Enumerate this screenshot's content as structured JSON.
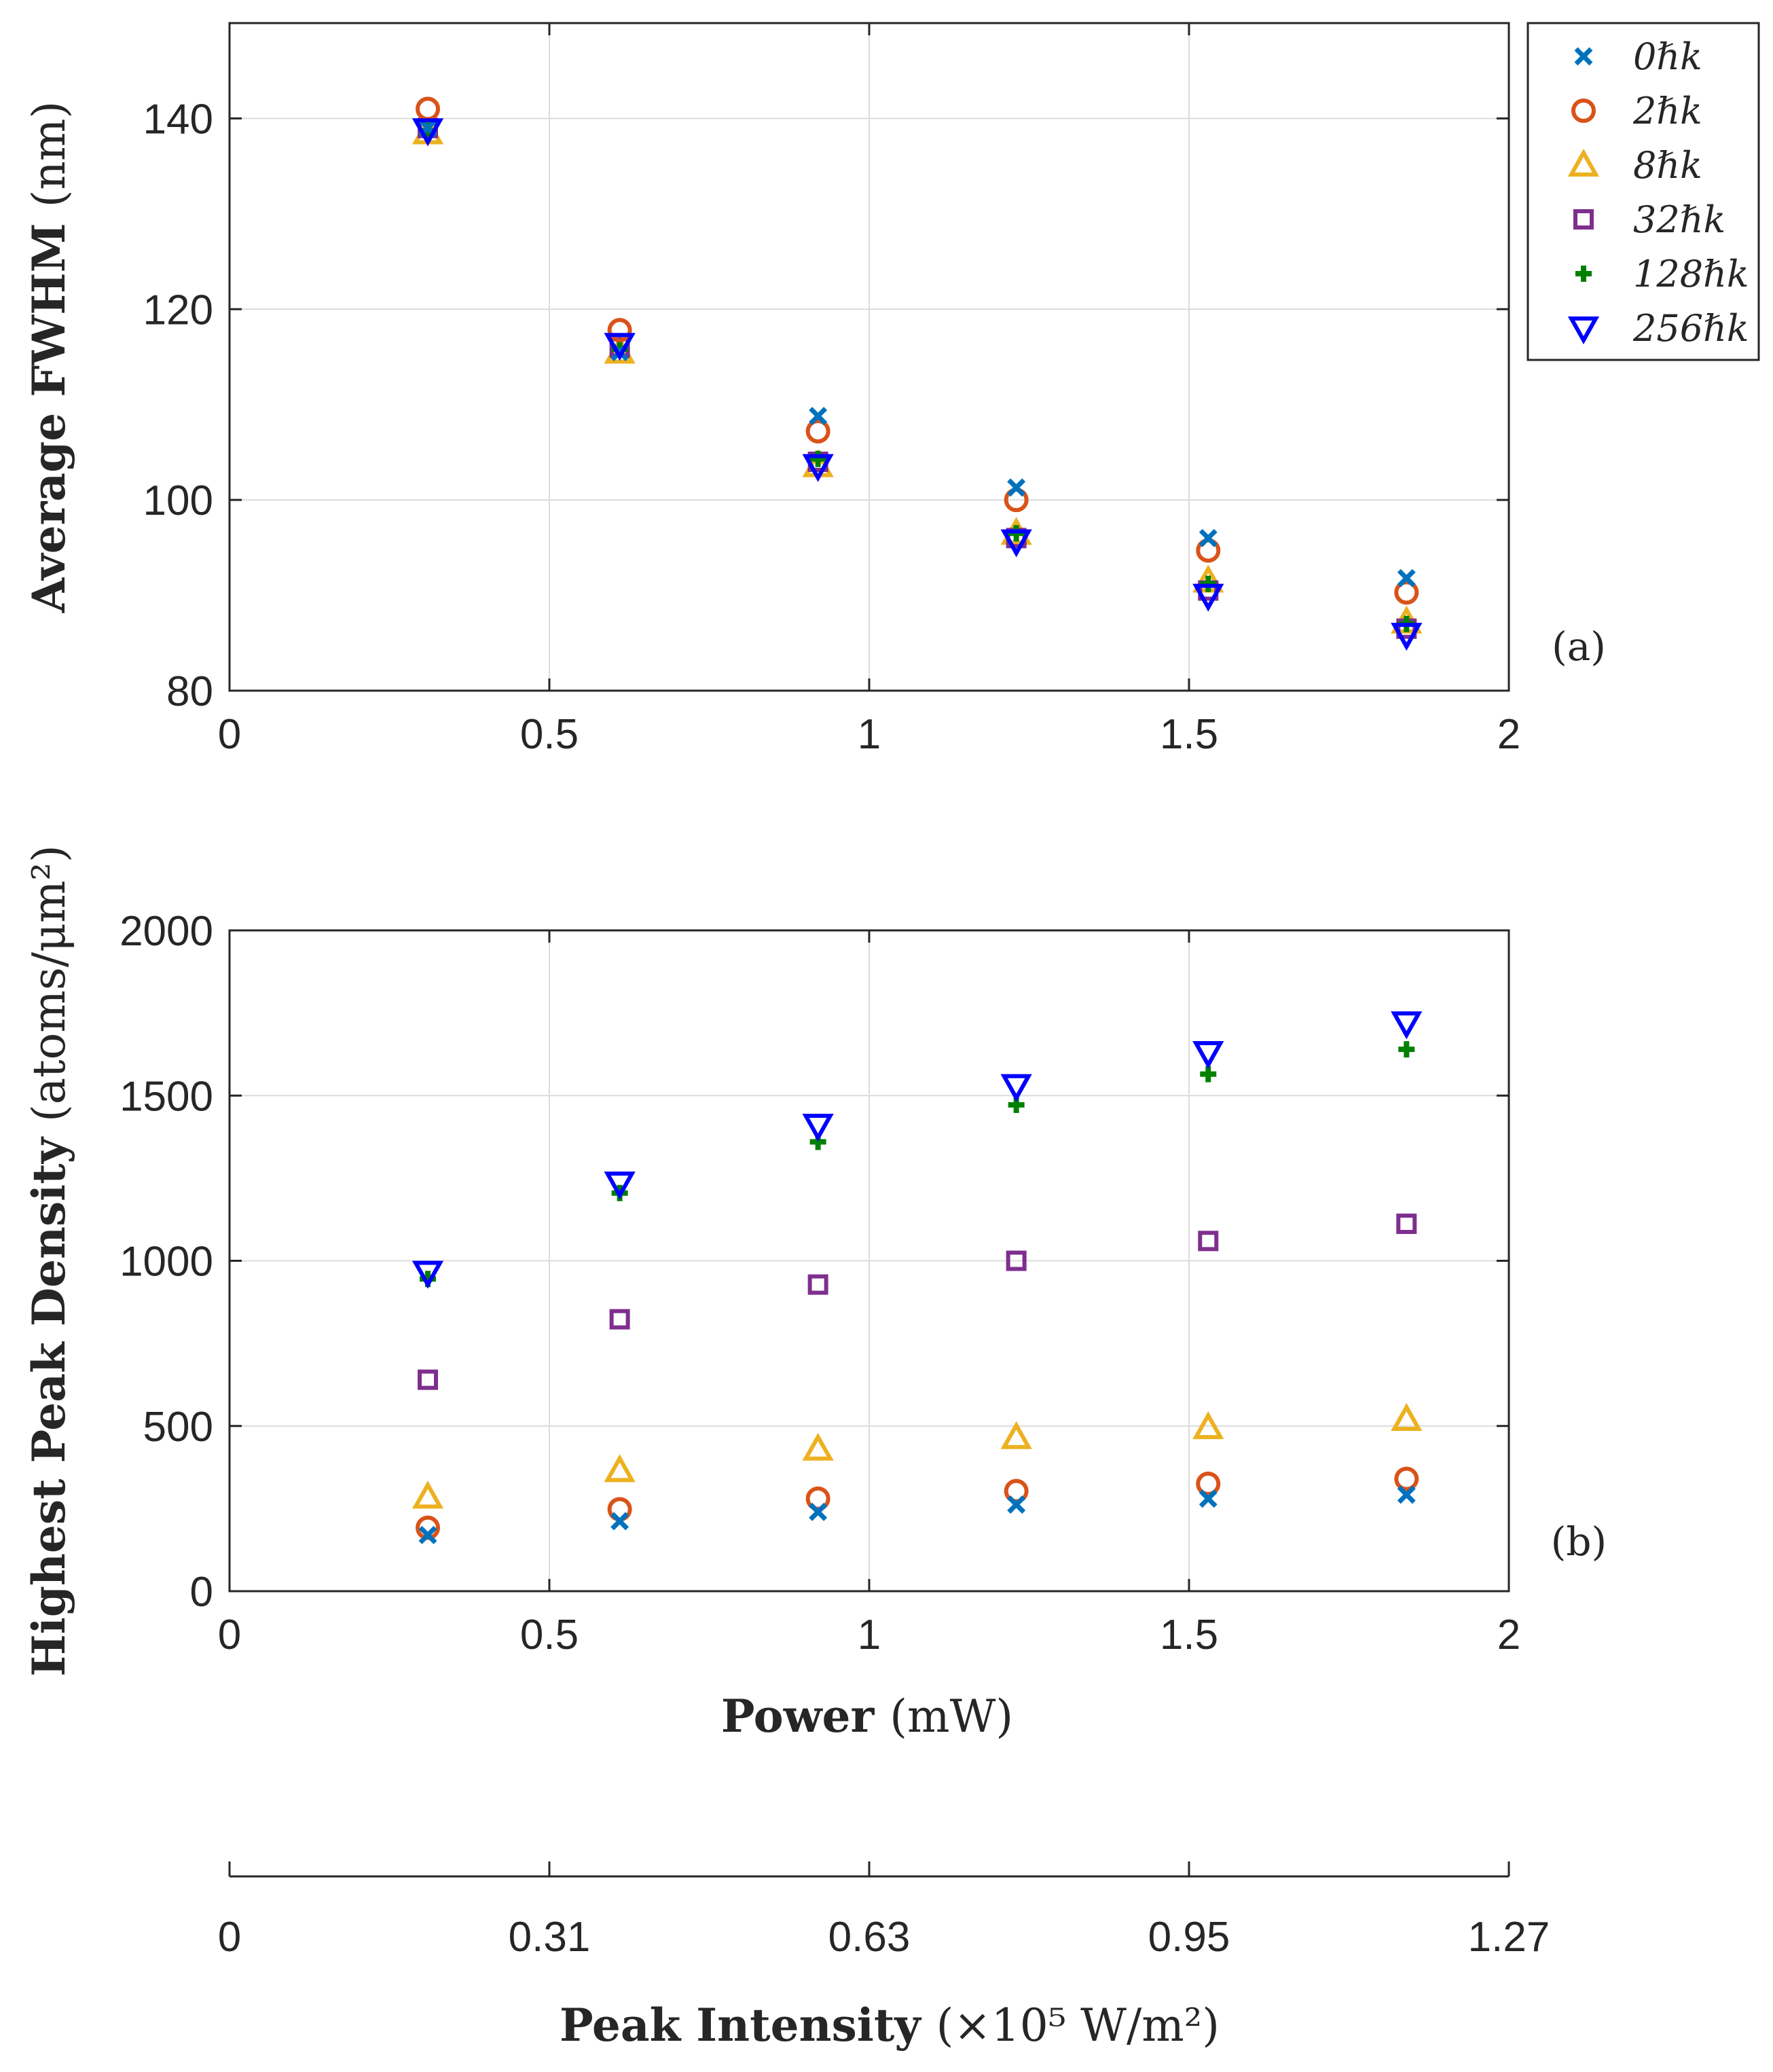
{
  "figure": {
    "xlabel_power": {
      "bold": "Power",
      "unit": "(mW)"
    },
    "xlabel_intensity": {
      "bold": "Peak Intensity",
      "unit": "(×10⁵ W/m²)"
    },
    "intensity_ticks": [
      "0",
      "0.31",
      "0.63",
      "0.95",
      "1.27"
    ]
  },
  "chart_data": [
    {
      "type": "scatter",
      "panel_label": "(a)",
      "ylabel": {
        "bold": "Average FWHM",
        "unit": "(nm)"
      },
      "xlabel": "",
      "xlim": [
        0,
        2
      ],
      "ylim": [
        80,
        150
      ],
      "xticks": [
        0,
        0.5,
        1,
        1.5,
        2
      ],
      "xtick_labels": [
        "0",
        "0.5",
        "1",
        "1.5",
        "2"
      ],
      "yticks": [
        80,
        100,
        120,
        140
      ],
      "ytick_labels": [
        "80",
        "100",
        "120",
        "140"
      ],
      "grid": true,
      "legend_position": "outside-top-right",
      "x": [
        0.31,
        0.61,
        0.92,
        1.23,
        1.53,
        1.84
      ],
      "series": [
        {
          "name": "0ℏk",
          "marker": "x",
          "color": "#0072BD",
          "values": [
            139,
            115.5,
            108.8,
            101.3,
            96,
            91.8
          ]
        },
        {
          "name": "2ℏk",
          "marker": "o",
          "color": "#D95319",
          "values": [
            141,
            117.8,
            107.2,
            100,
            94.7,
            90.3
          ]
        },
        {
          "name": "8ℏk",
          "marker": "triangle-up",
          "color": "#EDB120",
          "values": [
            138.5,
            115.5,
            103.6,
            96.5,
            91.5,
            87.2
          ]
        },
        {
          "name": "32ℏk",
          "marker": "square",
          "color": "#7E2F8E",
          "values": [
            139,
            116,
            104,
            96,
            90.5,
            86.5
          ]
        },
        {
          "name": "128ℏk",
          "marker": "plus",
          "color": "#008000",
          "values": [
            138.7,
            115.8,
            104.3,
            96.5,
            91.2,
            87
          ]
        },
        {
          "name": "256ℏk",
          "marker": "triangle-down",
          "color": "#0000FF",
          "values": [
            138.8,
            116.3,
            103.6,
            95.7,
            90,
            85.9
          ]
        }
      ]
    },
    {
      "type": "scatter",
      "panel_label": "(b)",
      "ylabel": {
        "bold": "Highest Peak Density",
        "unit": "(atoms/μm²)"
      },
      "xlabel": "Power (mW)",
      "xlim": [
        0,
        2
      ],
      "ylim": [
        0,
        2000
      ],
      "xticks": [
        0,
        0.5,
        1,
        1.5,
        2
      ],
      "xtick_labels": [
        "0",
        "0.5",
        "1",
        "1.5",
        "2"
      ],
      "yticks": [
        0,
        500,
        1000,
        1500,
        2000
      ],
      "ytick_labels": [
        "0",
        "500",
        "1000",
        "1500",
        "2000"
      ],
      "grid": true,
      "x": [
        0.31,
        0.61,
        0.92,
        1.23,
        1.53,
        1.84
      ],
      "series": [
        {
          "name": "0ℏk",
          "marker": "x",
          "color": "#0072BD",
          "values": [
            170,
            212,
            240,
            262,
            280,
            292
          ]
        },
        {
          "name": "2ℏk",
          "marker": "o",
          "color": "#D95319",
          "values": [
            192,
            248,
            280,
            303,
            325,
            340
          ]
        },
        {
          "name": "8ℏk",
          "marker": "triangle-up",
          "color": "#EDB120",
          "values": [
            285,
            365,
            430,
            465,
            495,
            520
          ]
        },
        {
          "name": "32ℏk",
          "marker": "square",
          "color": "#7E2F8E",
          "values": [
            640,
            823,
            928,
            1000,
            1060,
            1112
          ]
        },
        {
          "name": "128ℏk",
          "marker": "plus",
          "color": "#008000",
          "values": [
            945,
            1205,
            1360,
            1472,
            1565,
            1640
          ]
        },
        {
          "name": "256ℏk",
          "marker": "triangle-down",
          "color": "#0000FF",
          "values": [
            965,
            1235,
            1410,
            1530,
            1630,
            1720
          ]
        }
      ]
    }
  ]
}
